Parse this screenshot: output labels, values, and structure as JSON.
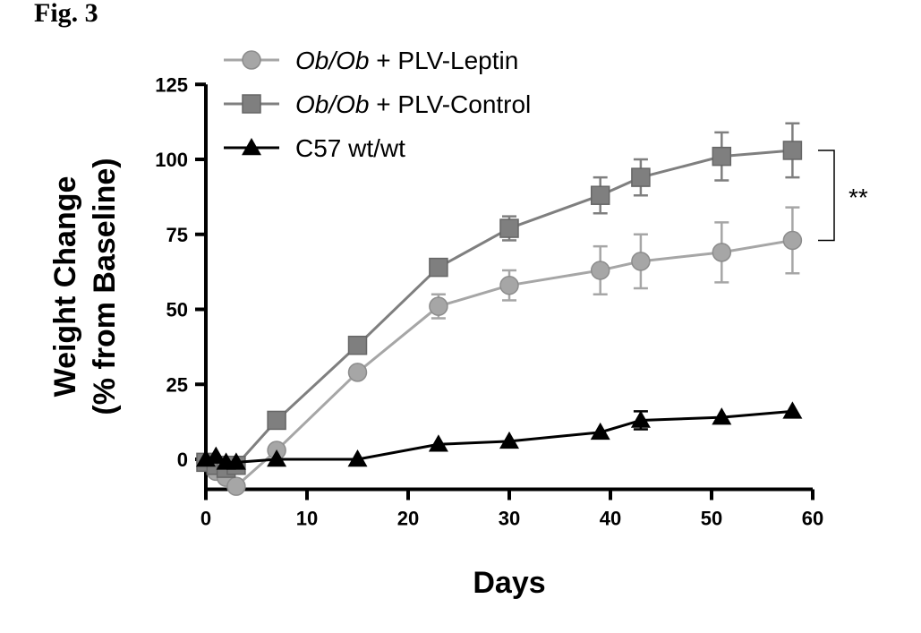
{
  "figure_label": "Fig. 3",
  "chart_data": {
    "type": "line",
    "xlabel": "Days",
    "ylabel_line1": "Weight Change",
    "ylabel_line2": "(% from Baseline)",
    "xlim": [
      0,
      60
    ],
    "ylim": [
      -10,
      125
    ],
    "xticks": [
      0,
      10,
      20,
      30,
      40,
      50,
      60
    ],
    "yticks": [
      0,
      25,
      50,
      75,
      100,
      125
    ],
    "grid": false,
    "legend_position": "top-left",
    "significance": "**",
    "series": [
      {
        "name_italic": "Ob/Ob",
        "name_rest": " + PLV-Leptin",
        "marker": "circle",
        "color": "#a6a6a6",
        "x": [
          0,
          1,
          2,
          3,
          7,
          15,
          23,
          30,
          39,
          43,
          51,
          58
        ],
        "y": [
          -1,
          -4,
          -6,
          -9,
          3,
          29,
          51,
          58,
          63,
          66,
          69,
          73
        ],
        "err": [
          0,
          0,
          0,
          0,
          0,
          0,
          4,
          5,
          8,
          9,
          10,
          11
        ]
      },
      {
        "name_italic": "Ob/Ob",
        "name_rest": " + PLV-Control",
        "marker": "square",
        "color": "#7f7f7f",
        "x": [
          0,
          1,
          2,
          3,
          7,
          15,
          23,
          30,
          39,
          43,
          51,
          58
        ],
        "y": [
          -1,
          -2,
          -3,
          -2,
          13,
          38,
          64,
          77,
          88,
          94,
          101,
          103
        ],
        "err": [
          0,
          0,
          0,
          0,
          0,
          0,
          0,
          4,
          6,
          6,
          8,
          9
        ]
      },
      {
        "name_italic": "",
        "name_rest": "C57 wt/wt",
        "marker": "triangle",
        "color": "#000000",
        "x": [
          0,
          1,
          2,
          3,
          7,
          15,
          23,
          30,
          39,
          43,
          51,
          58
        ],
        "y": [
          0,
          1,
          -1,
          -1,
          0,
          0,
          5,
          6,
          9,
          13,
          14,
          16
        ],
        "err": [
          0,
          0,
          0,
          0,
          0,
          0,
          0,
          0,
          0,
          3,
          0,
          0
        ]
      }
    ]
  }
}
